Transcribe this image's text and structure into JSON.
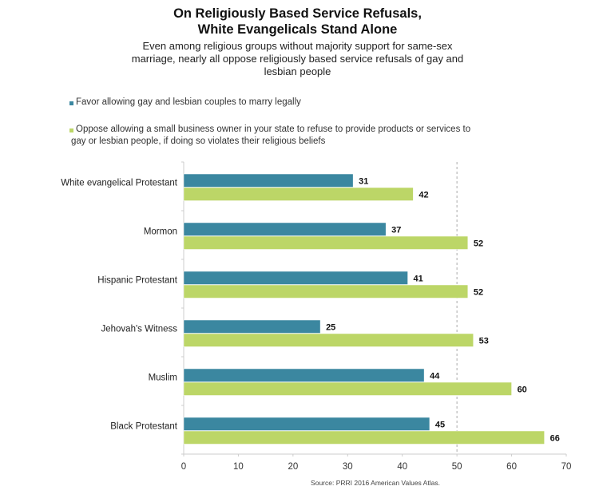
{
  "chart_data": {
    "type": "bar",
    "orientation": "horizontal",
    "title": "On Religiously Based Service Refusals, White Evangelicals Stand Alone",
    "title_lines": [
      "On Religiously Based Service Refusals,",
      "White Evangelicals Stand Alone"
    ],
    "subtitle_lines": [
      "Even among religious groups without majority support for same-sex",
      "marriage, nearly all oppose religiously based service refusals of gay and",
      "lesbian people"
    ],
    "categories": [
      "White evangelical Protestant",
      "Mormon",
      "Hispanic Protestant",
      "Jehovah's Witness",
      "Muslim",
      "Black Protestant"
    ],
    "series": [
      {
        "name": "Favor allowing gay and lesbian couples to marry legally",
        "legend_lines": [
          "Favor allowing gay and lesbian couples to marry legally"
        ],
        "color": "#3b87a0",
        "values": [
          31,
          37,
          41,
          25,
          44,
          45
        ]
      },
      {
        "name": "Oppose allowing a small business owner in your state to refuse to provide products or services to gay or lesbian people, if doing so violates their religious beliefs",
        "legend_lines": [
          "Oppose allowing a small business owner in your state to refuse to provide products or services to",
          "gay or lesbian people, if doing so violates their religious beliefs"
        ],
        "color": "#bcd667",
        "values": [
          42,
          52,
          52,
          53,
          60,
          66
        ]
      }
    ],
    "xlim": [
      0,
      70
    ],
    "xticks": [
      0,
      10,
      20,
      30,
      40,
      50,
      60,
      70
    ],
    "reference_line": 50,
    "xlabel": "",
    "ylabel": "",
    "grid": false,
    "legend_position": "top-left",
    "source": "Source: PRRI 2016 American Values Atlas."
  }
}
